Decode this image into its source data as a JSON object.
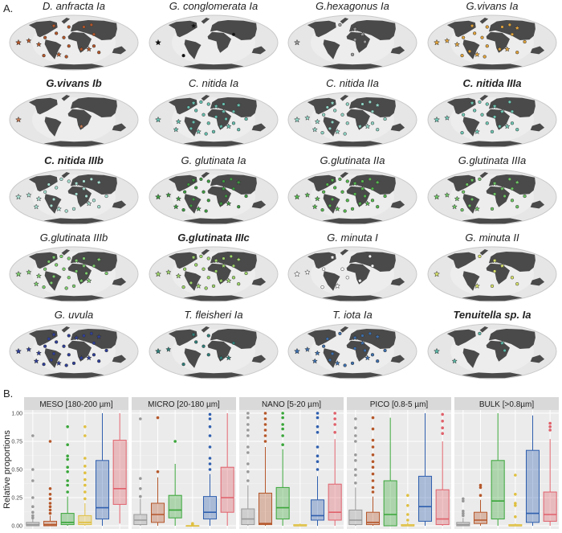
{
  "panel_a": {
    "label": "A.",
    "maps": [
      {
        "title": "D. anfracta Ia",
        "bold": false,
        "color": "#b5572a",
        "markers": 18
      },
      {
        "title": "G. conglomerata Ia",
        "bold": false,
        "color": "#111111",
        "markers": 3
      },
      {
        "title": "G.hexagonus Ia",
        "bold": false,
        "color": "#9a9a9a",
        "markers": 6
      },
      {
        "title": "G.vivans Ia",
        "bold": false,
        "color": "#e2a33a",
        "markers": 20
      },
      {
        "title": "G.vivans Ib",
        "bold": true,
        "color": "#c47a55",
        "markers": 1
      },
      {
        "title": "C. nitida Ia",
        "bold": false,
        "color": "#66bfae",
        "markers": 26
      },
      {
        "title": "C. nitida IIa",
        "bold": false,
        "color": "#8fd4c4",
        "markers": 24
      },
      {
        "title": "C. nitida IIIa",
        "bold": true,
        "color": "#6fc8b4",
        "markers": 20
      },
      {
        "title": "C. nitida IIIb",
        "bold": true,
        "color": "#a8e0d2",
        "markers": 24
      },
      {
        "title": "G. glutinata Ia",
        "bold": false,
        "color": "#3d9a40",
        "markers": 26
      },
      {
        "title": "G.glutinata IIa",
        "bold": false,
        "color": "#56b84e",
        "markers": 30
      },
      {
        "title": "G.glutinata IIIa",
        "bold": false,
        "color": "#6ec664",
        "markers": 22
      },
      {
        "title": "G.glutinata IIIb",
        "bold": false,
        "color": "#7ecf6e",
        "markers": 26
      },
      {
        "title": "G.glutinata IIIc",
        "bold": true,
        "color": "#9ed66a",
        "markers": 26
      },
      {
        "title": "G. minuta I",
        "bold": false,
        "color": "#ffffff",
        "markers": 10
      },
      {
        "title": "G. minuta II",
        "bold": false,
        "color": "#d9e36a",
        "markers": 8
      },
      {
        "title": "G. uvula",
        "bold": false,
        "color": "#2f3f99",
        "markers": 26
      },
      {
        "title": "T. fleisheri Ia",
        "bold": false,
        "color": "#2f7f7a",
        "markers": 10
      },
      {
        "title": "T. iota Ia",
        "bold": false,
        "color": "#3c6fae",
        "markers": 22
      },
      {
        "title": "Tenuitella sp. Ia",
        "bold": true,
        "color": "#5bb8a8",
        "markers": 4
      }
    ]
  },
  "panel_b_label": "B.",
  "chart_data": {
    "type": "box",
    "ylabel": "Relative proportions",
    "ylim": [
      0,
      1.0
    ],
    "yticks": [
      "0.00",
      "0.25",
      "0.50",
      "0.75",
      "1.00"
    ],
    "grid": true,
    "facets": [
      {
        "name": "MESO [180-200 µm]",
        "boxes": [
          {
            "color": "#999999",
            "q1": 0.0,
            "median": 0.01,
            "q3": 0.03,
            "lo": 0.0,
            "hi": 0.06,
            "out": [
              0.07,
              0.09,
              0.12,
              0.17,
              0.25,
              0.4,
              0.5,
              0.8
            ]
          },
          {
            "color": "#b5572a",
            "q1": 0.0,
            "median": 0.01,
            "q3": 0.04,
            "lo": 0.0,
            "hi": 0.09,
            "out": [
              0.11,
              0.14,
              0.17,
              0.2,
              0.24,
              0.28,
              0.33,
              0.75
            ]
          },
          {
            "color": "#3aa63a",
            "q1": 0.01,
            "median": 0.03,
            "q3": 0.11,
            "lo": 0.0,
            "hi": 0.26,
            "out": [
              0.3,
              0.36,
              0.4,
              0.48,
              0.52,
              0.59,
              0.62,
              0.72,
              0.88
            ]
          },
          {
            "color": "#e0c040",
            "q1": 0.01,
            "median": 0.03,
            "q3": 0.09,
            "lo": 0.0,
            "hi": 0.2,
            "out": [
              0.24,
              0.3,
              0.36,
              0.41,
              0.47,
              0.53,
              0.6,
              0.8,
              0.88
            ]
          },
          {
            "color": "#2f5fae",
            "q1": 0.06,
            "median": 0.16,
            "q3": 0.58,
            "lo": 0.0,
            "hi": 1.0,
            "out": []
          },
          {
            "color": "#e0616b",
            "q1": 0.19,
            "median": 0.33,
            "q3": 0.76,
            "lo": 0.02,
            "hi": 1.0,
            "out": []
          }
        ]
      },
      {
        "name": "MICRO [20-180 µm]",
        "boxes": [
          {
            "color": "#999999",
            "q1": 0.01,
            "median": 0.05,
            "q3": 0.1,
            "lo": 0.0,
            "hi": 0.24,
            "out": [
              0.26,
              0.33,
              0.42,
              0.95
            ]
          },
          {
            "color": "#b5572a",
            "q1": 0.03,
            "median": 0.1,
            "q3": 0.2,
            "lo": 0.0,
            "hi": 0.43,
            "out": [
              0.48,
              0.96
            ]
          },
          {
            "color": "#3aa63a",
            "q1": 0.07,
            "median": 0.14,
            "q3": 0.27,
            "lo": 0.0,
            "hi": 0.55,
            "out": [
              0.75
            ]
          },
          {
            "color": "#e0c040",
            "q1": 0.0,
            "median": 0.0,
            "q3": 0.0,
            "lo": 0.0,
            "hi": 0.0,
            "out": [
              0.01,
              0.02
            ]
          },
          {
            "color": "#2f5fae",
            "q1": 0.06,
            "median": 0.12,
            "q3": 0.26,
            "lo": 0.0,
            "hi": 0.46,
            "out": [
              0.5,
              0.55,
              0.6,
              0.7,
              0.8,
              0.88,
              0.95,
              0.99
            ]
          },
          {
            "color": "#e0616b",
            "q1": 0.12,
            "median": 0.25,
            "q3": 0.52,
            "lo": 0.0,
            "hi": 1.0,
            "out": []
          }
        ]
      },
      {
        "name": "NANO [5-20 µm]",
        "boxes": [
          {
            "color": "#999999",
            "q1": 0.01,
            "median": 0.06,
            "q3": 0.15,
            "lo": 0.0,
            "hi": 0.36,
            "out": [
              0.4,
              0.48,
              0.55,
              0.65,
              0.7,
              0.8,
              0.85,
              0.9,
              0.96,
              1.0
            ]
          },
          {
            "color": "#b5572a",
            "q1": 0.01,
            "median": 0.02,
            "q3": 0.29,
            "lo": 0.0,
            "hi": 0.7,
            "out": [
              0.75,
              0.8,
              0.85,
              0.9,
              0.95,
              1.0
            ]
          },
          {
            "color": "#3aa63a",
            "q1": 0.06,
            "median": 0.16,
            "q3": 0.34,
            "lo": 0.0,
            "hi": 0.68,
            "out": [
              0.72,
              0.8,
              0.86,
              0.9,
              0.96,
              1.0
            ]
          },
          {
            "color": "#e0c040",
            "q1": 0.0,
            "median": 0.0,
            "q3": 0.01,
            "lo": 0.0,
            "hi": 0.02,
            "out": []
          },
          {
            "color": "#2f5fae",
            "q1": 0.05,
            "median": 0.09,
            "q3": 0.23,
            "lo": 0.0,
            "hi": 0.44,
            "out": [
              0.5,
              0.57,
              0.62,
              0.7,
              0.83,
              0.88,
              0.96,
              1.0
            ]
          },
          {
            "color": "#e0616b",
            "q1": 0.05,
            "median": 0.12,
            "q3": 0.37,
            "lo": 0.0,
            "hi": 0.77,
            "out": [
              0.83,
              0.9,
              0.95,
              1.0
            ]
          }
        ]
      },
      {
        "name": "PICO [0.8-5 µm]",
        "boxes": [
          {
            "color": "#999999",
            "q1": 0.01,
            "median": 0.05,
            "q3": 0.14,
            "lo": 0.0,
            "hi": 0.34,
            "out": [
              0.38,
              0.45,
              0.5,
              0.58,
              0.63,
              0.75,
              0.8,
              0.87,
              0.95
            ]
          },
          {
            "color": "#b5572a",
            "q1": 0.01,
            "median": 0.03,
            "q3": 0.12,
            "lo": 0.0,
            "hi": 0.26,
            "out": [
              0.3,
              0.34,
              0.4,
              0.46,
              0.52,
              0.57,
              0.63,
              0.7,
              0.76,
              0.86,
              0.96
            ]
          },
          {
            "color": "#3aa63a",
            "q1": 0.0,
            "median": 0.1,
            "q3": 0.4,
            "lo": 0.0,
            "hi": 0.96,
            "out": []
          },
          {
            "color": "#e0c040",
            "q1": 0.0,
            "median": 0.0,
            "q3": 0.01,
            "lo": 0.0,
            "hi": 0.03,
            "out": [
              0.05,
              0.1,
              0.18,
              0.27
            ]
          },
          {
            "color": "#2f5fae",
            "q1": 0.04,
            "median": 0.17,
            "q3": 0.44,
            "lo": 0.0,
            "hi": 1.0,
            "out": []
          },
          {
            "color": "#e0616b",
            "q1": 0.01,
            "median": 0.06,
            "q3": 0.32,
            "lo": 0.0,
            "hi": 0.75,
            "out": [
              0.82,
              0.87,
              0.93,
              0.99
            ]
          }
        ]
      },
      {
        "name": "BULK [>0.8µm]",
        "boxes": [
          {
            "color": "#999999",
            "q1": 0.0,
            "median": 0.01,
            "q3": 0.03,
            "lo": 0.0,
            "hi": 0.07,
            "out": [
              0.09,
              0.11,
              0.13,
              0.22,
              0.24
            ]
          },
          {
            "color": "#b5572a",
            "q1": 0.02,
            "median": 0.05,
            "q3": 0.12,
            "lo": 0.0,
            "hi": 0.23,
            "out": [
              0.27,
              0.34,
              0.36
            ]
          },
          {
            "color": "#3aa63a",
            "q1": 0.06,
            "median": 0.22,
            "q3": 0.58,
            "lo": 0.0,
            "hi": 1.0,
            "out": []
          },
          {
            "color": "#e0c040",
            "q1": 0.0,
            "median": 0.0,
            "q3": 0.01,
            "lo": 0.0,
            "hi": 0.02,
            "out": [
              0.08,
              0.18,
              0.2,
              0.28,
              0.45
            ]
          },
          {
            "color": "#2f5fae",
            "q1": 0.03,
            "median": 0.11,
            "q3": 0.67,
            "lo": 0.0,
            "hi": 0.98,
            "out": []
          },
          {
            "color": "#e0616b",
            "q1": 0.04,
            "median": 0.1,
            "q3": 0.3,
            "lo": 0.0,
            "hi": 0.77,
            "out": [
              0.85,
              0.88,
              0.91
            ]
          }
        ]
      }
    ]
  }
}
